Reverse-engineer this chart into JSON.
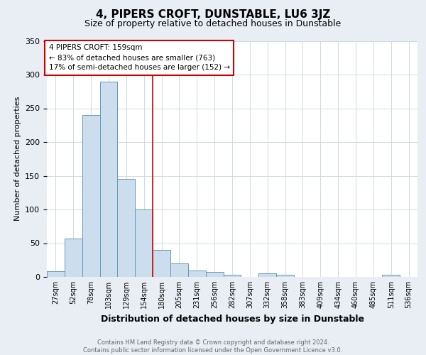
{
  "title": "4, PIPERS CROFT, DUNSTABLE, LU6 3JZ",
  "subtitle": "Size of property relative to detached houses in Dunstable",
  "xlabel": "Distribution of detached houses by size in Dunstable",
  "ylabel": "Number of detached properties",
  "bin_labels": [
    "27sqm",
    "52sqm",
    "78sqm",
    "103sqm",
    "129sqm",
    "154sqm",
    "180sqm",
    "205sqm",
    "231sqm",
    "256sqm",
    "282sqm",
    "307sqm",
    "332sqm",
    "358sqm",
    "383sqm",
    "409sqm",
    "434sqm",
    "460sqm",
    "485sqm",
    "511sqm",
    "536sqm"
  ],
  "bar_heights": [
    8,
    57,
    240,
    290,
    145,
    100,
    40,
    20,
    10,
    7,
    3,
    0,
    5,
    3,
    0,
    0,
    0,
    0,
    0,
    3,
    0
  ],
  "bar_color": "#ccdded",
  "bar_edge_color": "#6699bb",
  "vline_color": "#cc0000",
  "vline_pos": 5.5,
  "annotation_text": "4 PIPERS CROFT: 159sqm\n← 83% of detached houses are smaller (763)\n17% of semi-detached houses are larger (152) →",
  "ylim": [
    0,
    350
  ],
  "yticks": [
    0,
    50,
    100,
    150,
    200,
    250,
    300,
    350
  ],
  "footer_line1": "Contains HM Land Registry data © Crown copyright and database right 2024.",
  "footer_line2": "Contains public sector information licensed under the Open Government Licence v3.0.",
  "bg_color": "#e8eef4",
  "plot_bg_color": "#ffffff",
  "grid_color": "#c8d4de",
  "title_fontsize": 11,
  "subtitle_fontsize": 9,
  "ylabel_fontsize": 8,
  "xlabel_fontsize": 9,
  "tick_fontsize": 7,
  "annot_fontsize": 7.5,
  "footer_fontsize": 6,
  "footer_color": "#666666"
}
